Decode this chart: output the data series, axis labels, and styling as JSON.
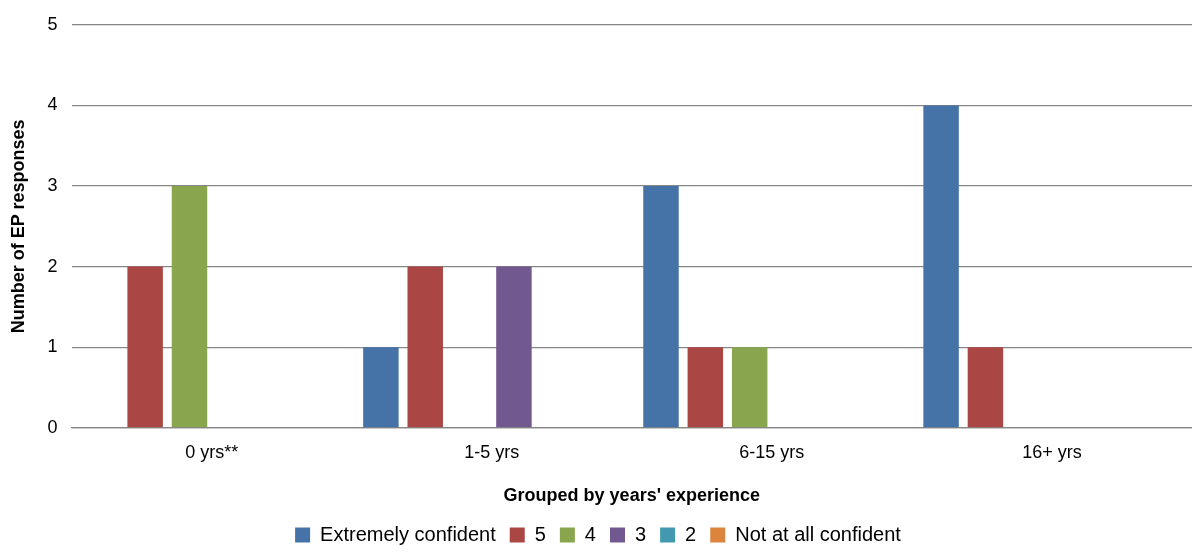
{
  "chart_data": {
    "type": "bar",
    "xlabel": "Grouped by years' experience",
    "ylabel": "Number of EP responses",
    "categories": [
      "0 yrs**",
      "1-5 yrs",
      "6-15 yrs",
      "16+ yrs"
    ],
    "series": [
      {
        "name": "Extremely confident",
        "color": "#4572a7",
        "values": [
          0,
          1,
          3,
          4
        ]
      },
      {
        "name": "5",
        "color": "#aa4643",
        "values": [
          2,
          2,
          1,
          1
        ]
      },
      {
        "name": "4",
        "color": "#89a54e",
        "values": [
          3,
          0,
          1,
          0
        ]
      },
      {
        "name": "3",
        "color": "#71588f",
        "values": [
          0,
          2,
          0,
          0
        ]
      },
      {
        "name": "2",
        "color": "#4198af",
        "values": [
          0,
          0,
          0,
          0
        ]
      },
      {
        "name": "Not at all confident",
        "color": "#db843d",
        "values": [
          0,
          0,
          0,
          0
        ]
      }
    ],
    "ylim": [
      0,
      5
    ],
    "yticks": [
      0,
      1,
      2,
      3,
      4,
      5
    ],
    "grid": "y",
    "legend": "bottom"
  }
}
